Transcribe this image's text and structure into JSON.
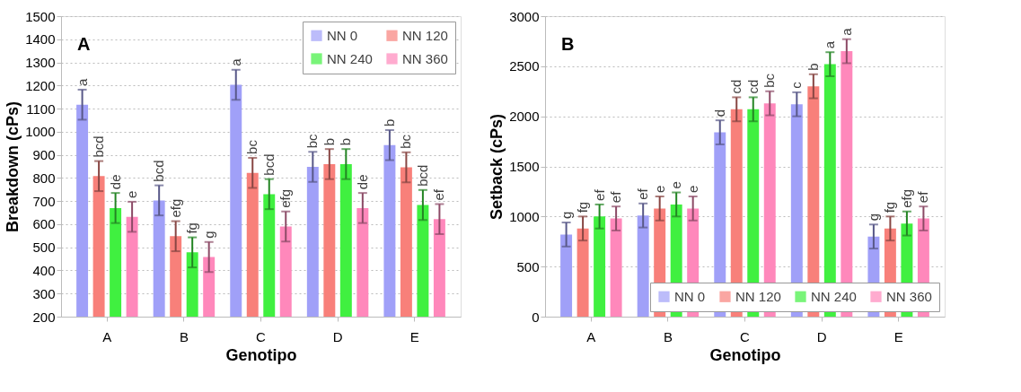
{
  "chart_data": [
    {
      "type": "bar",
      "annotations": [
        "A"
      ],
      "xlabel": "Genotipo",
      "ylabel": "Breakdown (cPs)",
      "categories": [
        "A",
        "B",
        "C",
        "D",
        "E"
      ],
      "ylim": [
        200,
        1500
      ],
      "yticks": [
        200,
        300,
        400,
        500,
        600,
        700,
        800,
        900,
        1000,
        1100,
        1200,
        1300,
        1400,
        1500
      ],
      "grid": "y",
      "legend": "top right",
      "series": [
        {
          "name": "NN 0",
          "color": "#a0a0f8",
          "values": [
            1117,
            703,
            1203,
            848,
            942
          ],
          "errors": [
            65,
            65,
            65,
            65,
            65
          ],
          "value_labels": [
            "a",
            "bcd",
            "a",
            "bc",
            "b"
          ]
        },
        {
          "name": "NN 120",
          "color": "#f8807a",
          "values": [
            808,
            548,
            822,
            860,
            846
          ],
          "errors": [
            65,
            65,
            65,
            65,
            65
          ],
          "value_labels": [
            "bcd",
            "efg",
            "bc",
            "b",
            "bc"
          ]
        },
        {
          "name": "NN 240",
          "color": "#40f040",
          "values": [
            670,
            478,
            730,
            860,
            683
          ],
          "errors": [
            65,
            65,
            65,
            65,
            65
          ],
          "value_labels": [
            "de",
            "fg",
            "bcd",
            "b",
            "bcd"
          ]
        },
        {
          "name": "NN 360",
          "color": "#ff88bb",
          "values": [
            632,
            458,
            590,
            670,
            622
          ],
          "errors": [
            65,
            65,
            65,
            65,
            65
          ],
          "value_labels": [
            "e",
            "g",
            "efg",
            "de",
            "ef"
          ]
        }
      ]
    },
    {
      "type": "bar",
      "annotations": [
        "B"
      ],
      "xlabel": "Genotipo",
      "ylabel": "Setback (cPs)",
      "categories": [
        "A",
        "B",
        "C",
        "D",
        "E"
      ],
      "ylim": [
        0,
        3000
      ],
      "yticks": [
        0,
        500,
        1000,
        1500,
        2000,
        2500,
        3000
      ],
      "grid": "y",
      "legend": "bottom right",
      "series": [
        {
          "name": "NN 0",
          "color": "#a0a0f8",
          "values": [
            820,
            1010,
            1840,
            2120,
            800
          ],
          "errors": [
            120,
            120,
            120,
            120,
            120
          ],
          "value_labels": [
            "g",
            "ef",
            "d",
            "c",
            "g"
          ]
        },
        {
          "name": "NN 120",
          "color": "#f8807a",
          "values": [
            880,
            1080,
            2070,
            2300,
            880
          ],
          "errors": [
            120,
            120,
            120,
            120,
            120
          ],
          "value_labels": [
            "fg",
            "e",
            "cd",
            "b",
            "fg"
          ]
        },
        {
          "name": "NN 240",
          "color": "#40f040",
          "values": [
            1000,
            1120,
            2070,
            2520,
            930
          ],
          "errors": [
            120,
            120,
            120,
            120,
            120
          ],
          "value_labels": [
            "ef",
            "e",
            "cd",
            "a",
            "efg"
          ]
        },
        {
          "name": "NN 360",
          "color": "#ff88bb",
          "values": [
            980,
            1080,
            2130,
            2650,
            980
          ],
          "errors": [
            120,
            120,
            120,
            120,
            120
          ],
          "value_labels": [
            "ef",
            "e",
            "bc",
            "a",
            "ef"
          ]
        }
      ]
    }
  ]
}
